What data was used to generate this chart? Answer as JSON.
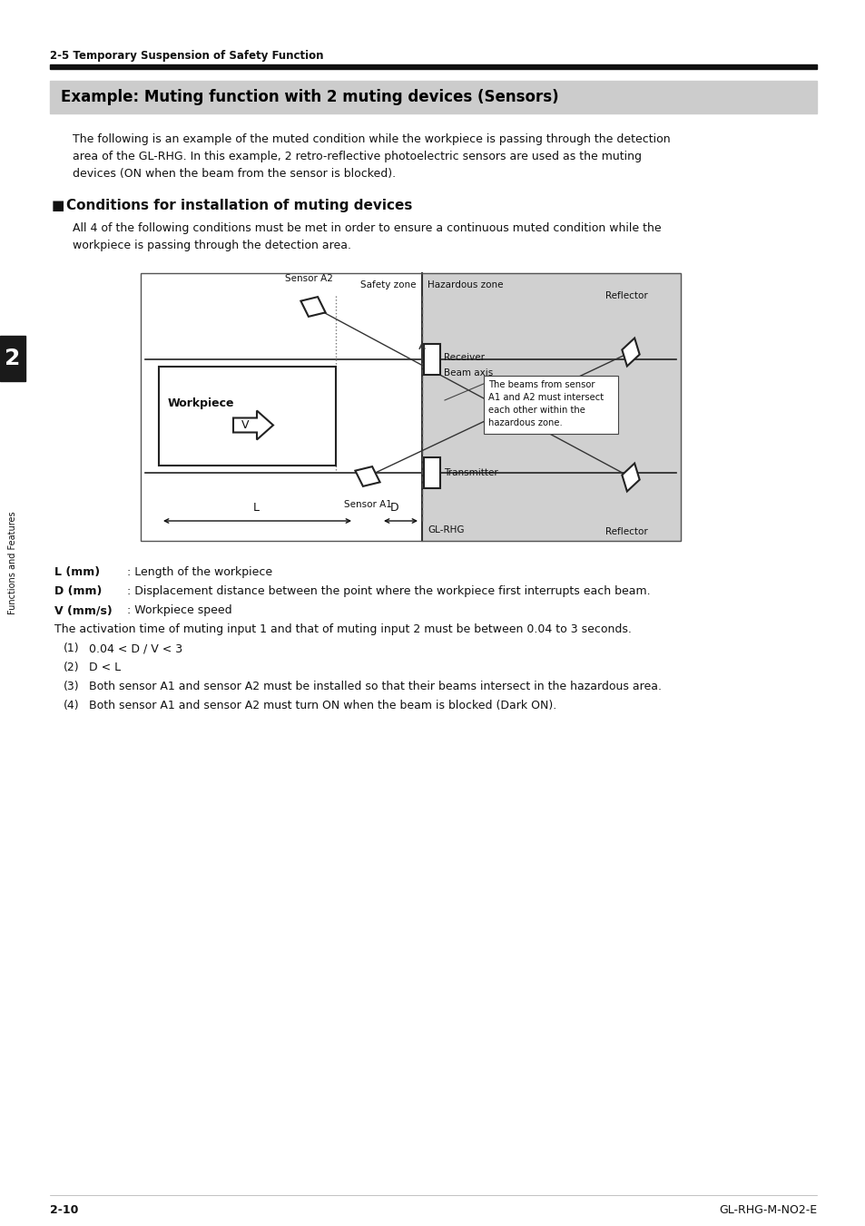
{
  "page_title": "2-5 Temporary Suspension of Safety Function",
  "section_title": "Example: Muting function with 2 muting devices (Sensors)",
  "section_title_bg": "#c8c8c8",
  "body_text_1_lines": [
    "The following is an example of the muted condition while the workpiece is passing through the detection",
    "area of the GL-RHG. In this example, 2 retro-reflective photoelectric sensors are used as the muting",
    "devices (ON when the beam from the sensor is blocked)."
  ],
  "subsection_title": "Conditions for installation of muting devices",
  "body_text_2_lines": [
    "All 4 of the following conditions must be met in order to ensure a continuous muted condition while the",
    "workpiece is passing through the detection area."
  ],
  "diagram_labels": {
    "safety_zone": "Safety zone",
    "hazardous_zone": "Hazardous zone",
    "sensor_a2": "Sensor A2",
    "reflector_top": "Reflector",
    "receiver": "Receiver",
    "beam_axis": "Beam axis",
    "workpiece": "Workpiece",
    "v_label": "V",
    "l_label": "L",
    "d_label": "D",
    "sensor_a1": "Sensor A1",
    "transmitter": "Transmitter",
    "gl_rhg": "GL-RHG",
    "reflector_bottom": "Reflector",
    "annotation": "The beams from sensor\nA1 and A2 must intersect\neach other within the\nhazardous zone."
  },
  "legend_lines": [
    [
      "L (mm)",
      ": Length of the workpiece"
    ],
    [
      "D (mm)",
      ": Displacement distance between the point where the workpiece first interrupts each beam."
    ],
    [
      "V (mm/s)",
      ": Workpiece speed"
    ],
    [
      "",
      "The activation time of muting input 1 and that of muting input 2 must be between 0.04 to 3 seconds."
    ],
    [
      "(1)",
      "0.04 < D / V < 3"
    ],
    [
      "(2)",
      "D < L"
    ],
    [
      "(3)",
      "Both sensor A1 and sensor A2 must be installed so that their beams intersect in the hazardous area."
    ],
    [
      "(4)",
      "Both sensor A1 and sensor A2 must turn ON when the beam is blocked (Dark ON)."
    ]
  ],
  "footer_left": "2-10",
  "footer_right": "GL-RHG-M-NO2-E",
  "sidebar_text": "Functions and Features",
  "sidebar_number": "2",
  "sidebar_bg": "#1a1a1a",
  "background_color": "#ffffff",
  "hazardous_zone_color": "#d0d0d0",
  "section_bg": "#cccccc"
}
